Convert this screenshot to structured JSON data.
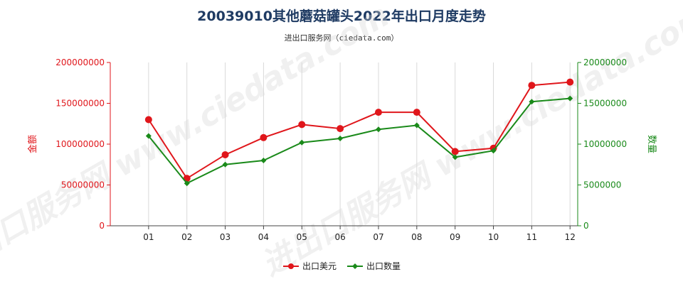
{
  "chart_data": {
    "type": "line",
    "title": "20039010其他蘑菇罐头2022年出口月度走势",
    "subtitle": "进出口服务网（ciedata.com）",
    "watermark": "进出口服务网 www.ciedata.com",
    "categories": [
      "01",
      "02",
      "03",
      "04",
      "05",
      "06",
      "07",
      "08",
      "09",
      "10",
      "11",
      "12"
    ],
    "y_left": {
      "label": "金额",
      "range": [
        0,
        200000000
      ],
      "ticks": [
        "0",
        "50000000",
        "100000000",
        "150000000",
        "200000000"
      ]
    },
    "y_right": {
      "label": "数量",
      "range": [
        0,
        20000000
      ],
      "ticks": [
        "0",
        "5000000",
        "10000000",
        "15000000",
        "20000000"
      ]
    },
    "series": [
      {
        "name": "出口美元",
        "axis": "left",
        "color": "#e0161b",
        "values": [
          130000000,
          58000000,
          87000000,
          108000000,
          124000000,
          119000000,
          139000000,
          139000000,
          91000000,
          95000000,
          172000000,
          176000000
        ]
      },
      {
        "name": "出口数量",
        "axis": "right",
        "color": "#1a8a1a",
        "values": [
          11000000,
          5200000,
          7500000,
          8000000,
          10200000,
          10700000,
          11800000,
          12300000,
          8400000,
          9200000,
          15200000,
          15600000
        ]
      }
    ],
    "grid": "vertical",
    "legend_position": "bottom-center"
  }
}
